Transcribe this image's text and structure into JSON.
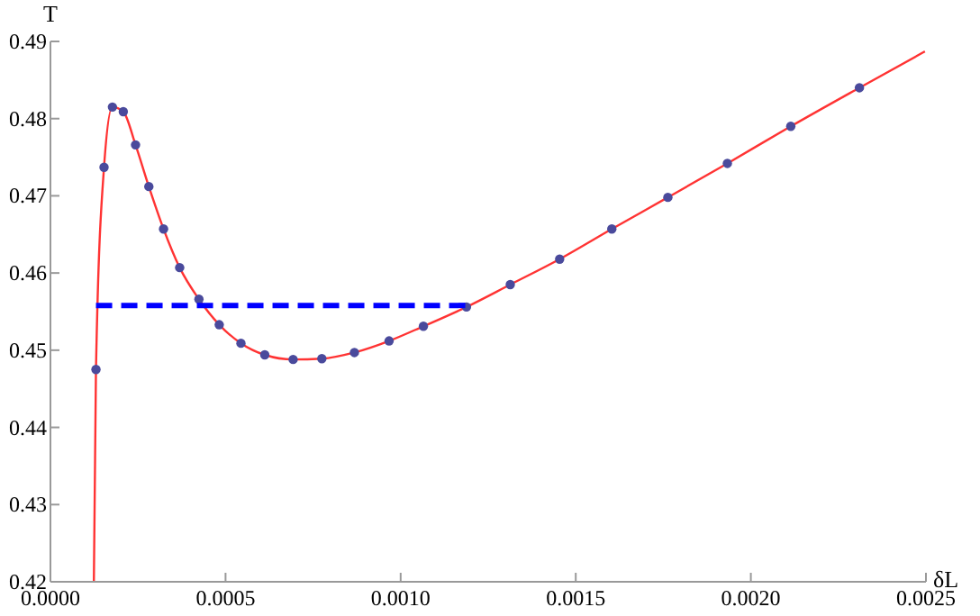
{
  "chart_data": {
    "type": "line",
    "xlabel": "δL",
    "ylabel": "T",
    "xlim": [
      0,
      0.0025
    ],
    "ylim": [
      0.42,
      0.49
    ],
    "xticks": [
      {
        "value": 0,
        "label": "0.0000"
      },
      {
        "value": 0.0005,
        "label": "0.0005"
      },
      {
        "value": 0.001,
        "label": "0.0010"
      },
      {
        "value": 0.0015,
        "label": "0.0015"
      },
      {
        "value": 0.002,
        "label": "0.0020"
      },
      {
        "value": 0.0025,
        "label": "0.0025"
      }
    ],
    "yticks": [
      0.42,
      0.43,
      0.44,
      0.45,
      0.46,
      0.47,
      0.48,
      0.49
    ],
    "grid": false,
    "series": [
      {
        "color": "#ff3333",
        "marker": "none",
        "line_style": "solid",
        "x": [
          0.000124,
          0.00013,
          0.000153,
          0.000177,
          0.000208,
          0.000243,
          0.000281,
          0.000323,
          0.000369,
          0.000424,
          0.000482,
          0.000544,
          0.000612,
          0.000693,
          0.000775,
          0.000868,
          0.000967,
          0.001065,
          0.001188,
          0.001313,
          0.001454,
          0.001603,
          0.001763,
          0.001933,
          0.002114,
          0.00231,
          0.002497
        ],
        "values": [
          0.42,
          0.4475,
          0.4737,
          0.4815,
          0.4809,
          0.4766,
          0.4712,
          0.4657,
          0.4607,
          0.4566,
          0.4533,
          0.4509,
          0.4494,
          0.4488,
          0.4489,
          0.4497,
          0.4512,
          0.4531,
          0.4556,
          0.4585,
          0.4618,
          0.4657,
          0.4698,
          0.4742,
          0.479,
          0.484,
          0.4887
        ]
      },
      {
        "type": "scatter",
        "color": "#4a4a9c",
        "marker": "circle",
        "x": [
          0.00013,
          0.000153,
          0.000177,
          0.000208,
          0.000243,
          0.000281,
          0.000323,
          0.000369,
          0.000424,
          0.000482,
          0.000544,
          0.000612,
          0.000693,
          0.000775,
          0.000868,
          0.000967,
          0.001065,
          0.001188,
          0.001313,
          0.001454,
          0.001603,
          0.001763,
          0.001933,
          0.002114,
          0.00231
        ],
        "values": [
          0.4475,
          0.4737,
          0.4815,
          0.4809,
          0.4766,
          0.4712,
          0.4657,
          0.4607,
          0.4566,
          0.4533,
          0.4509,
          0.4494,
          0.4488,
          0.4489,
          0.4497,
          0.4512,
          0.4531,
          0.4556,
          0.4585,
          0.4618,
          0.4657,
          0.4698,
          0.4742,
          0.479,
          0.484
        ]
      },
      {
        "type": "line",
        "color": "#0000ff",
        "marker": "none",
        "line_style": "dashed",
        "x": [
          0.00013,
          0.00119
        ],
        "values": [
          0.4558,
          0.4558
        ]
      }
    ]
  }
}
